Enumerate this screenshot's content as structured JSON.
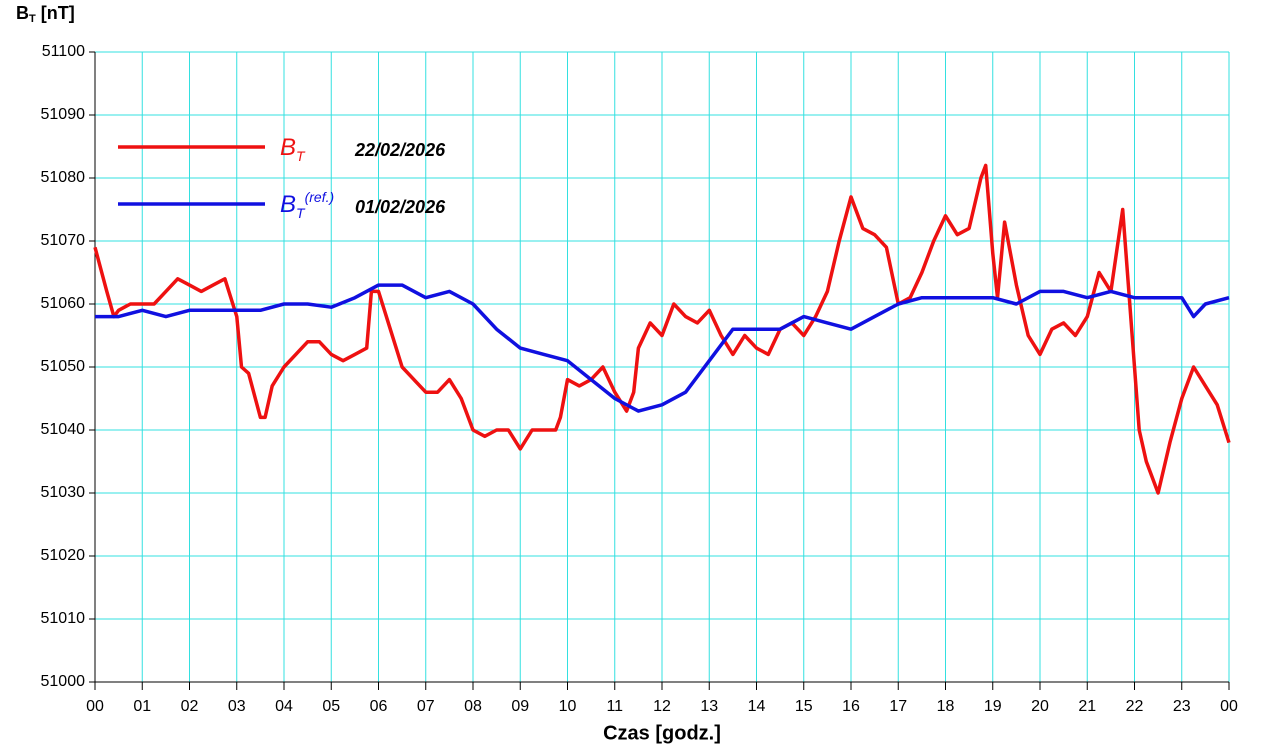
{
  "chart_data": {
    "type": "line",
    "y_label_symbol": "B",
    "y_label_sub": "T",
    "y_label": "[nT]",
    "x_label": "Czas [godz.]",
    "xlim": [
      0,
      24
    ],
    "xticks": [
      {
        "value": 0,
        "label": "00"
      },
      {
        "value": 1,
        "label": "01"
      },
      {
        "value": 2,
        "label": "02"
      },
      {
        "value": 3,
        "label": "03"
      },
      {
        "value": 4,
        "label": "04"
      },
      {
        "value": 5,
        "label": "05"
      },
      {
        "value": 6,
        "label": "06"
      },
      {
        "value": 7,
        "label": "07"
      },
      {
        "value": 8,
        "label": "08"
      },
      {
        "value": 9,
        "label": "09"
      },
      {
        "value": 10,
        "label": "10"
      },
      {
        "value": 11,
        "label": "11"
      },
      {
        "value": 12,
        "label": "12"
      },
      {
        "value": 13,
        "label": "13"
      },
      {
        "value": 14,
        "label": "14"
      },
      {
        "value": 15,
        "label": "15"
      },
      {
        "value": 16,
        "label": "16"
      },
      {
        "value": 17,
        "label": "17"
      },
      {
        "value": 18,
        "label": "18"
      },
      {
        "value": 19,
        "label": "19"
      },
      {
        "value": 20,
        "label": "20"
      },
      {
        "value": 21,
        "label": "21"
      },
      {
        "value": 22,
        "label": "22"
      },
      {
        "value": 23,
        "label": "23"
      },
      {
        "value": 24,
        "label": "00"
      }
    ],
    "ylim": [
      51000,
      51100
    ],
    "yticks": [
      51000,
      51010,
      51020,
      51030,
      51040,
      51050,
      51060,
      51070,
      51080,
      51090,
      51100
    ],
    "grid": true,
    "grid_color": "#33e0e0",
    "legend": "upper left",
    "series": [
      {
        "name": "B",
        "name_sub": "T",
        "date": "22/02/2026",
        "color": "#ee1111",
        "x": [
          0,
          0.25,
          0.4,
          0.5,
          0.75,
          1,
          1.25,
          1.5,
          1.75,
          2,
          2.25,
          2.5,
          2.75,
          3,
          3.1,
          3.25,
          3.5,
          3.6,
          3.75,
          4,
          4.25,
          4.5,
          4.75,
          5,
          5.25,
          5.5,
          5.75,
          5.85,
          6,
          6.25,
          6.5,
          6.75,
          7,
          7.25,
          7.5,
          7.75,
          8,
          8.25,
          8.5,
          8.75,
          9,
          9.25,
          9.5,
          9.75,
          9.85,
          10,
          10.25,
          10.5,
          10.75,
          11,
          11.25,
          11.4,
          11.5,
          11.75,
          12,
          12.25,
          12.5,
          12.75,
          13,
          13.25,
          13.5,
          13.75,
          14,
          14.25,
          14.5,
          14.75,
          15,
          15.25,
          15.5,
          15.75,
          16,
          16.25,
          16.5,
          16.75,
          17,
          17.25,
          17.5,
          17.75,
          18,
          18.25,
          18.5,
          18.75,
          18.85,
          19,
          19.1,
          19.25,
          19.5,
          19.75,
          20,
          20.25,
          20.5,
          20.75,
          21,
          21.25,
          21.5,
          21.75,
          22,
          22.1,
          22.25,
          22.5,
          22.75,
          23,
          23.25,
          23.5,
          23.75,
          24
        ],
        "values": [
          51069,
          51062,
          51058,
          51059,
          51060,
          51060,
          51060,
          51062,
          51064,
          51063,
          51062,
          51063,
          51064,
          51058,
          51050,
          51049,
          51042,
          51042,
          51047,
          51050,
          51052,
          51054,
          51054,
          51052,
          51051,
          51052,
          51053,
          51062,
          51062,
          51056,
          51050,
          51048,
          51046,
          51046,
          51048,
          51045,
          51040,
          51039,
          51040,
          51040,
          51037,
          51040,
          51040,
          51040,
          51042,
          51048,
          51047,
          51048,
          51050,
          51046,
          51043,
          51046,
          51053,
          51057,
          51055,
          51060,
          51058,
          51057,
          51059,
          51055,
          51052,
          51055,
          51053,
          51052,
          51056,
          51057,
          51055,
          51058,
          51062,
          51070,
          51077,
          51072,
          51071,
          51069,
          51060,
          51061,
          51065,
          51070,
          51074,
          51071,
          51072,
          51080,
          51082,
          51068,
          51061,
          51073,
          51063,
          51055,
          51052,
          51056,
          51057,
          51055,
          51058,
          51065,
          51062,
          51075,
          51050,
          51040,
          51035,
          51030,
          51038,
          51045,
          51050,
          51047,
          51044,
          51038
        ]
      },
      {
        "name": "B",
        "name_sub": "T",
        "name_sup": "(ref.)",
        "date": "01/02/2026",
        "color": "#1010e0",
        "x": [
          0,
          0.5,
          1,
          1.5,
          2,
          2.5,
          3,
          3.5,
          4,
          4.5,
          5,
          5.5,
          6,
          6.5,
          7,
          7.5,
          8,
          8.5,
          9,
          9.5,
          10,
          10.5,
          11,
          11.5,
          12,
          12.5,
          13,
          13.5,
          14,
          14.5,
          15,
          15.5,
          16,
          16.5,
          17,
          17.5,
          18,
          18.5,
          19,
          19.5,
          20,
          20.5,
          21,
          21.5,
          22,
          22.5,
          23,
          23.25,
          23.5,
          24
        ],
        "values": [
          51058,
          51058,
          51059,
          51058,
          51059,
          51059,
          51059,
          51059,
          51060,
          51060,
          51059.5,
          51061,
          51063,
          51063,
          51061,
          51062,
          51060,
          51056,
          51053,
          51052,
          51051,
          51048,
          51045,
          51043,
          51044,
          51046,
          51051,
          51056,
          51056,
          51056,
          51058,
          51057,
          51056,
          51058,
          51060,
          51061,
          51061,
          51061,
          51061,
          51060,
          51062,
          51062,
          51061,
          51062,
          51061,
          51061,
          51061,
          51058,
          51060,
          51061
        ]
      }
    ]
  }
}
